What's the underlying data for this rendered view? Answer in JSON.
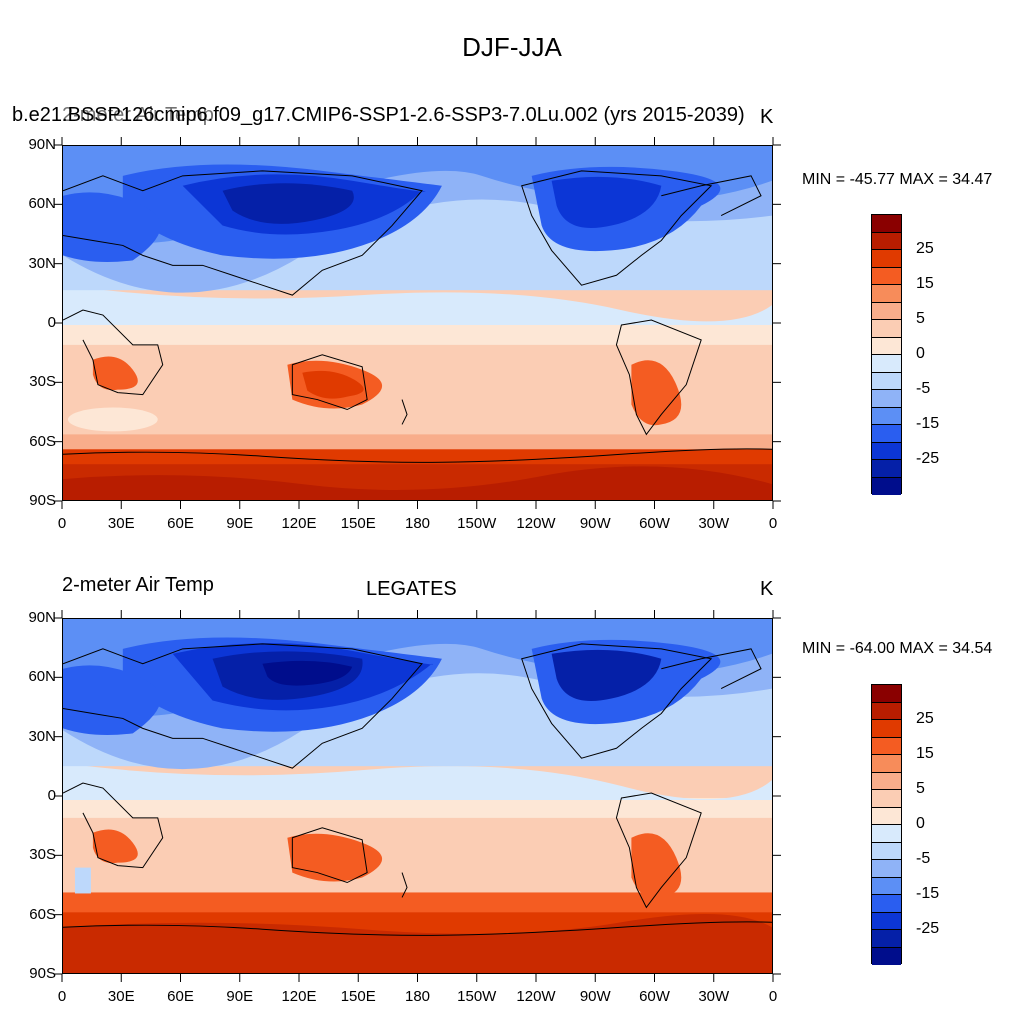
{
  "figure": {
    "title": "DJF-JJA"
  },
  "panels": [
    {
      "left_label": "2-meter Air Temp",
      "case_name": "b.e21.BSSP126cmip6.f09_g17.CMIP6-SSP1-2.6-SSP3-7.0Lu.002 (yrs 2015-2039)",
      "units": "K",
      "stats": "MIN = -45.77 MAX =  34.47"
    },
    {
      "left_label": "2-meter Air Temp",
      "center_label": "LEGATES",
      "units": "K",
      "stats": "MIN = -64.00 MAX =  34.54"
    }
  ],
  "axes": {
    "lat_labels": [
      "90N",
      "60N",
      "30N",
      "0",
      "30S",
      "60S",
      "90S"
    ],
    "lon_labels": [
      "0",
      "30E",
      "60E",
      "90E",
      "120E",
      "150E",
      "180",
      "150W",
      "120W",
      "90W",
      "60W",
      "30W",
      "0"
    ]
  },
  "colorbar": {
    "labels": [
      "25",
      "15",
      "5",
      "0",
      "-5",
      "-15",
      "-25"
    ],
    "colors": [
      "#8a0000",
      "#b81d00",
      "#e03a00",
      "#f45c22",
      "#f78c5a",
      "#f8ad8b",
      "#fbcdb4",
      "#fde7d6",
      "#d8eafc",
      "#bdd8fb",
      "#8fb3f7",
      "#5c8ff5",
      "#2a5ef0",
      "#0c36d6",
      "#0520a8",
      "#000d8c"
    ]
  }
}
